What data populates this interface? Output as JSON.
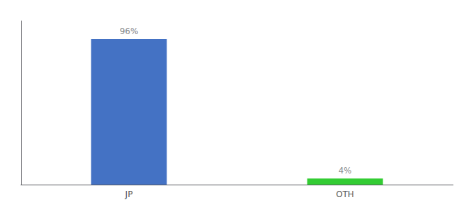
{
  "chart_data": {
    "type": "bar",
    "categories": [
      "JP",
      "OTH"
    ],
    "values": [
      96,
      4
    ],
    "value_labels": [
      "96%",
      "4%"
    ],
    "colors": [
      "#4472c4",
      "#33cc33"
    ],
    "ylim": [
      0,
      108
    ],
    "grid": false,
    "tick_labels": "x",
    "data_labels": true
  }
}
